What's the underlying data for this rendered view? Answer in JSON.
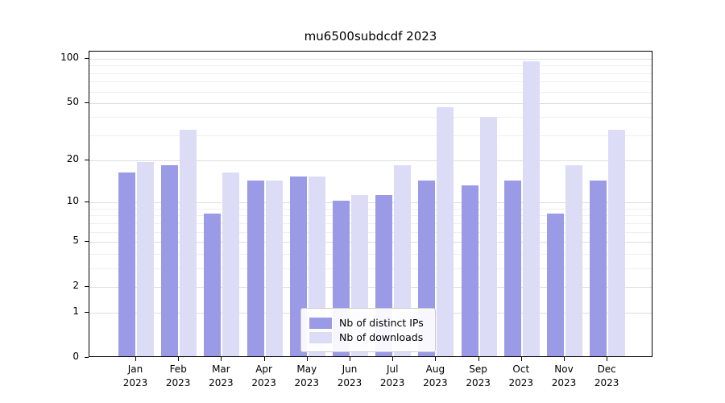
{
  "chart_data": {
    "type": "bar",
    "title": "mu6500subdcdf 2023",
    "categories": [
      "Jan",
      "Feb",
      "Mar",
      "Apr",
      "May",
      "Jun",
      "Jul",
      "Aug",
      "Sep",
      "Oct",
      "Nov",
      "Dec"
    ],
    "year_label": "2023",
    "series": [
      {
        "name": "Nb of distinct IPs",
        "color": "#9a9ae6",
        "values": [
          16,
          18,
          8,
          14,
          15,
          10,
          11,
          14,
          13,
          14,
          8,
          14
        ]
      },
      {
        "name": "Nb of downloads",
        "color": "#dcdcf7",
        "values": [
          19,
          32,
          16,
          14,
          15,
          11,
          18,
          46,
          39,
          94,
          18,
          32
        ]
      }
    ],
    "yscale": "log1p",
    "yticks": [
      0,
      1,
      2,
      5,
      10,
      20,
      50,
      100
    ],
    "minor_yticks": [
      3,
      4,
      6,
      7,
      8,
      9,
      30,
      40,
      60,
      70,
      80,
      90
    ],
    "ylim": [
      0,
      112
    ],
    "grid": true,
    "legend_position": "bottom-center"
  }
}
